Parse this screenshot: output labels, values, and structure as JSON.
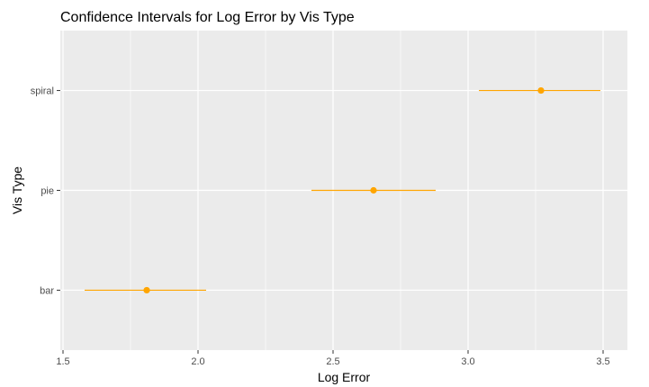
{
  "chart_data": {
    "type": "errorbar",
    "title": "Confidence Intervals for Log Error by Vis Type",
    "xlabel": "Log Error",
    "ylabel": "Vis Type",
    "xlim": [
      1.49,
      3.59
    ],
    "x_ticks": [
      1.5,
      2.0,
      2.5,
      3.0,
      3.5
    ],
    "x_tick_labels": [
      "1.5",
      "2.0",
      "2.5",
      "3.0",
      "3.5"
    ],
    "categories": [
      "bar",
      "pie",
      "spiral"
    ],
    "points": [
      {
        "category": "bar",
        "estimate": 1.81,
        "lower": 1.58,
        "upper": 2.03
      },
      {
        "category": "pie",
        "estimate": 2.65,
        "lower": 2.42,
        "upper": 2.88
      },
      {
        "category": "spiral",
        "estimate": 3.27,
        "lower": 3.04,
        "upper": 3.49
      }
    ],
    "grid": true,
    "colors": {
      "panel": "#ebebeb",
      "grid": "#ffffff",
      "mark": "#ffa500"
    }
  }
}
